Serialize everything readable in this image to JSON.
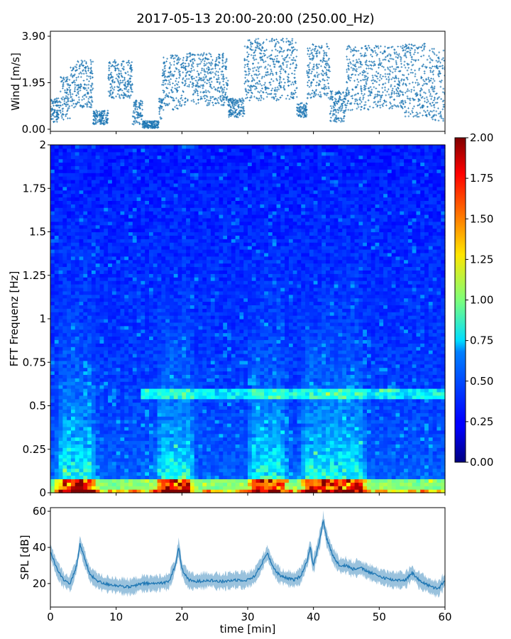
{
  "figure": {
    "title": "2017-05-13 20:00-20:00 (250.00_Hz)",
    "xlabel": "time [min]"
  },
  "chart_data": [
    {
      "type": "scatter",
      "panel": "wind",
      "ylabel": "Wind [m/s]",
      "ylim": [
        0.0,
        3.9
      ],
      "xlim": [
        0,
        60
      ],
      "y_ticks": [
        "0.00",
        "1.95",
        "3.90"
      ],
      "y_tick_values": [
        0.0,
        1.95,
        3.9
      ],
      "color": "#1f77b4",
      "series_segments": [
        {
          "x0": 0.0,
          "x1": 1.5,
          "lo": 0.3,
          "hi": 1.3
        },
        {
          "x0": 1.5,
          "x1": 3.0,
          "lo": 0.4,
          "hi": 2.2
        },
        {
          "x0": 3.0,
          "x1": 6.5,
          "lo": 0.9,
          "hi": 2.9
        },
        {
          "x0": 6.5,
          "x1": 8.8,
          "lo": 0.2,
          "hi": 0.8
        },
        {
          "x0": 8.8,
          "x1": 12.5,
          "lo": 1.3,
          "hi": 2.9
        },
        {
          "x0": 12.5,
          "x1": 14.0,
          "lo": 0.2,
          "hi": 1.3
        },
        {
          "x0": 14.0,
          "x1": 16.5,
          "lo": 0.05,
          "hi": 0.35
        },
        {
          "x0": 16.5,
          "x1": 17.0,
          "lo": 0.4,
          "hi": 1.4
        },
        {
          "x0": 17.0,
          "x1": 20.0,
          "lo": 0.8,
          "hi": 3.1
        },
        {
          "x0": 20.0,
          "x1": 26.5,
          "lo": 1.0,
          "hi": 3.2
        },
        {
          "x0": 26.5,
          "x1": 27.0,
          "lo": 1.2,
          "hi": 3.0
        },
        {
          "x0": 27.0,
          "x1": 29.5,
          "lo": 0.5,
          "hi": 1.3
        },
        {
          "x0": 29.5,
          "x1": 37.5,
          "lo": 1.2,
          "hi": 3.8
        },
        {
          "x0": 37.5,
          "x1": 39.0,
          "lo": 0.5,
          "hi": 1.1
        },
        {
          "x0": 39.0,
          "x1": 42.5,
          "lo": 1.3,
          "hi": 3.6
        },
        {
          "x0": 42.5,
          "x1": 45.0,
          "lo": 0.3,
          "hi": 1.6
        },
        {
          "x0": 45.0,
          "x1": 53.5,
          "lo": 0.8,
          "hi": 3.5
        },
        {
          "x0": 53.5,
          "x1": 57.5,
          "lo": 0.5,
          "hi": 3.6
        },
        {
          "x0": 57.5,
          "x1": 60.0,
          "lo": 0.3,
          "hi": 3.4
        }
      ]
    },
    {
      "type": "heatmap",
      "panel": "spectrogram",
      "ylabel": "FFT Frequenz [Hz]",
      "xlim": [
        0,
        60
      ],
      "ylim": [
        0,
        2
      ],
      "y_ticks": [
        "0",
        "0.25",
        "0.5",
        "0.75",
        "1",
        "1.25",
        "1.5",
        "1.75",
        "2"
      ],
      "y_tick_values": [
        0,
        0.25,
        0.5,
        0.75,
        1,
        1.25,
        1.5,
        1.75,
        2
      ],
      "colormap": "jet",
      "colorbar": {
        "range": [
          0.0,
          2.0
        ],
        "ticks": [
          "0.00",
          "0.25",
          "0.50",
          "0.75",
          "1.00",
          "1.25",
          "1.50",
          "1.75",
          "2.00"
        ],
        "tick_values": [
          0.0,
          0.25,
          0.5,
          0.75,
          1.0,
          1.25,
          1.5,
          1.75,
          2.0
        ]
      },
      "high_energy_time_bands_min": [
        [
          2,
          6
        ],
        [
          17,
          21
        ],
        [
          31,
          35
        ],
        [
          39,
          47
        ]
      ],
      "tonal_line_hz": 0.57
    },
    {
      "type": "area",
      "panel": "spl",
      "ylabel": "SPL [dB]",
      "xlim": [
        0,
        60
      ],
      "ylim": [
        7,
        62
      ],
      "y_ticks": [
        "20",
        "40",
        "60"
      ],
      "y_tick_values": [
        20,
        40,
        60
      ],
      "x_ticks": [
        "0",
        "10",
        "20",
        "30",
        "40",
        "50",
        "60"
      ],
      "x_tick_values": [
        0,
        10,
        20,
        30,
        40,
        50,
        60
      ],
      "color": "#1f77b4",
      "x": [
        0,
        1,
        2,
        3,
        4,
        4.5,
        5,
        6,
        7,
        8,
        10,
        12,
        14,
        16,
        18,
        19,
        19.5,
        20,
        21,
        22,
        24,
        26,
        28,
        30,
        31,
        32,
        33,
        34,
        35,
        37,
        38,
        39,
        39.5,
        40,
        41,
        41.5,
        42,
        43,
        44,
        45,
        46,
        47,
        48,
        50,
        52,
        54,
        55,
        56,
        57,
        58,
        59,
        60
      ],
      "values": [
        38,
        28,
        22,
        20,
        30,
        42,
        36,
        25,
        22,
        20,
        19,
        18,
        20,
        20,
        21,
        30,
        40,
        28,
        22,
        21,
        22,
        21,
        22,
        22,
        24,
        30,
        37,
        28,
        24,
        22,
        24,
        32,
        40,
        30,
        45,
        55,
        45,
        35,
        30,
        30,
        28,
        29,
        27,
        24,
        22,
        22,
        26,
        22,
        20,
        18,
        17,
        22
      ],
      "spread_db": 4
    }
  ]
}
